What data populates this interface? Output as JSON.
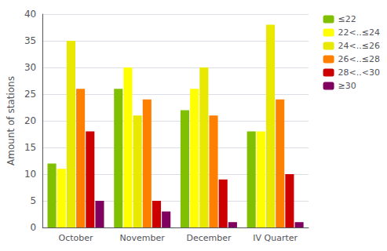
{
  "chart_data": {
    "type": "bar",
    "categories": [
      "October",
      "November",
      "December",
      "IV Quarter"
    ],
    "series": [
      {
        "name": "≤22",
        "color": "#80c000",
        "values": [
          12,
          26,
          22,
          18
        ]
      },
      {
        "name": "22<..≤24",
        "color": "#ffff00",
        "values": [
          11,
          30,
          26,
          18
        ]
      },
      {
        "name": "24<..≤26",
        "color": "#e8e800",
        "values": [
          35,
          21,
          30,
          38
        ]
      },
      {
        "name": "26<..≤28",
        "color": "#ff8000",
        "values": [
          26,
          24,
          21,
          24
        ]
      },
      {
        "name": "28<..<30",
        "color": "#cc0000",
        "values": [
          18,
          5,
          9,
          10
        ]
      },
      {
        "name": "≥30",
        "color": "#800060",
        "values": [
          5,
          3,
          1,
          1
        ]
      }
    ],
    "ylabel": "Amount of stations",
    "ylim": [
      0,
      40
    ],
    "yticks": [
      0,
      5,
      10,
      15,
      20,
      25,
      30,
      35,
      40
    ],
    "grid": true,
    "legend": "upper right"
  }
}
